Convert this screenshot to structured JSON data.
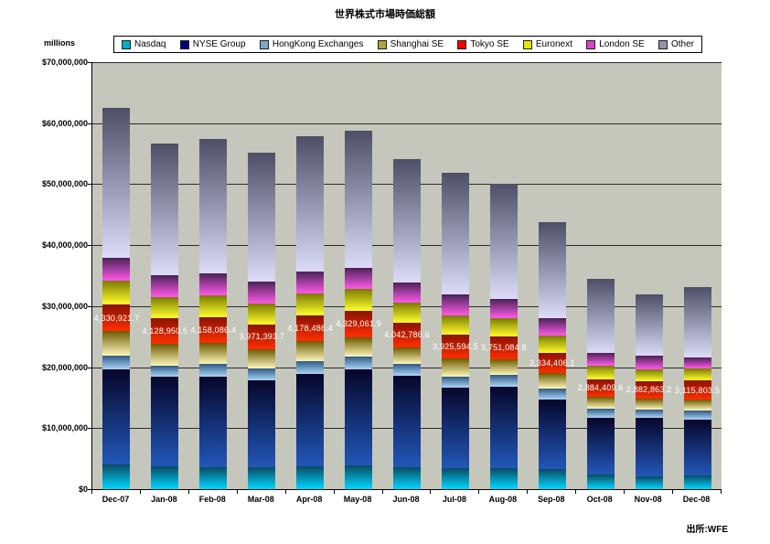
{
  "title": "世界株式市場時価総額",
  "source": "出所:WFE",
  "chart_data": {
    "type": "bar",
    "stacked": true,
    "title": "世界株式市場時価総額",
    "unit_label": "millions",
    "xlabel": "",
    "ylabel": "millions (USD)",
    "ylim": [
      0,
      70000000
    ],
    "y_tick_step": 10000000,
    "y_tick_labels": [
      "$70,000,000",
      "$60,000,000",
      "$50,000,000",
      "$40,000,000",
      "$30,000,000",
      "$20,000,000",
      "$10,000,000",
      "$0"
    ],
    "grid": true,
    "legend_position": "top",
    "plot_bg": "#c6c7bc",
    "categories": [
      "Dec-07",
      "Jan-08",
      "Feb-08",
      "Mar-08",
      "Apr-08",
      "May-08",
      "Jun-08",
      "Jul-08",
      "Aug-08",
      "Sep-08",
      "Oct-08",
      "Nov-08",
      "Dec-08"
    ],
    "series": [
      {
        "name": "Nasdaq",
        "legend_color": "#00acc8",
        "grad_top": "#0a4a63",
        "grad_bottom": "#00d8ff",
        "values": [
          4000000,
          3700000,
          3600000,
          3600000,
          3750000,
          3900000,
          3600000,
          3450000,
          3450000,
          3250000,
          2450000,
          2150000,
          2250000
        ]
      },
      {
        "name": "NYSE Group",
        "legend_color": "#000080",
        "grad_top": "#06062a",
        "grad_bottom": "#2257b8",
        "values": [
          15700000,
          14700000,
          14900000,
          14200000,
          15200000,
          15700000,
          15000000,
          13150000,
          13400000,
          11450000,
          9300000,
          9500000,
          9200000
        ]
      },
      {
        "name": "HongKong Exchanges",
        "legend_color": "#7fa8c9",
        "grad_top": "#2f5a85",
        "grad_bottom": "#aad4f5",
        "values": [
          2200000,
          1900000,
          2000000,
          2000000,
          2100000,
          2200000,
          2000000,
          1900000,
          1900000,
          1800000,
          1500000,
          1400000,
          1450000
        ]
      },
      {
        "name": "Shanghai SE",
        "legend_color": "#b0a43a",
        "grad_top": "#6b5a00",
        "grad_bottom": "#fdf6bb",
        "values": [
          4000000,
          3600000,
          3500000,
          3200000,
          3300000,
          3100000,
          2700000,
          2900000,
          2600000,
          2500000,
          1900000,
          1800000,
          1800000
        ]
      },
      {
        "name": "Tokyo SE",
        "legend_color": "#ff0000",
        "grad_top": "#8a1200",
        "grad_bottom": "#ff2e00",
        "values": [
          4330921.7,
          4128950.5,
          4158086.4,
          3971393.7,
          4178486.4,
          4329061.9,
          4042786.6,
          3925594.5,
          3751084.8,
          3334406.1,
          2884409.6,
          2882863.2,
          3115803.5
        ]
      },
      {
        "name": "Euronext",
        "legend_color": "#e6e600",
        "grad_top": "#7a7a00",
        "grad_bottom": "#ffff2e",
        "values": [
          3900000,
          3500000,
          3600000,
          3500000,
          3600000,
          3600000,
          3300000,
          3100000,
          2900000,
          2800000,
          2200000,
          1900000,
          1900000
        ]
      },
      {
        "name": "London SE",
        "legend_color": "#d940cc",
        "grad_top": "#4a2258",
        "grad_bottom": "#ff5ae8",
        "values": [
          3800000,
          3500000,
          3600000,
          3500000,
          3600000,
          3500000,
          3300000,
          3500000,
          3200000,
          2900000,
          2100000,
          2200000,
          1900000
        ]
      },
      {
        "name": "Other",
        "legend_color": "#9393aa",
        "grad_top": "#4e4e66",
        "grad_bottom": "#dcdcf8",
        "values": [
          24600000,
          21600000,
          22000000,
          21200000,
          22200000,
          22500000,
          20100000,
          19975000,
          18900000,
          15800000,
          12200000,
          10100000,
          11500000
        ]
      }
    ],
    "data_labels": {
      "series": "Tokyo SE",
      "values": [
        "4,330,921.7",
        "4,128,950.5",
        "4,158,086.4",
        "3,971,393.7",
        "4,178,486.4",
        "4,329,061.9",
        "4,042,786.6",
        "3,925,594.5",
        "3,751,084.8",
        "3,334,406.1",
        "2,884,409.6",
        "2,882,863.2",
        "3,115,803.5"
      ]
    }
  }
}
